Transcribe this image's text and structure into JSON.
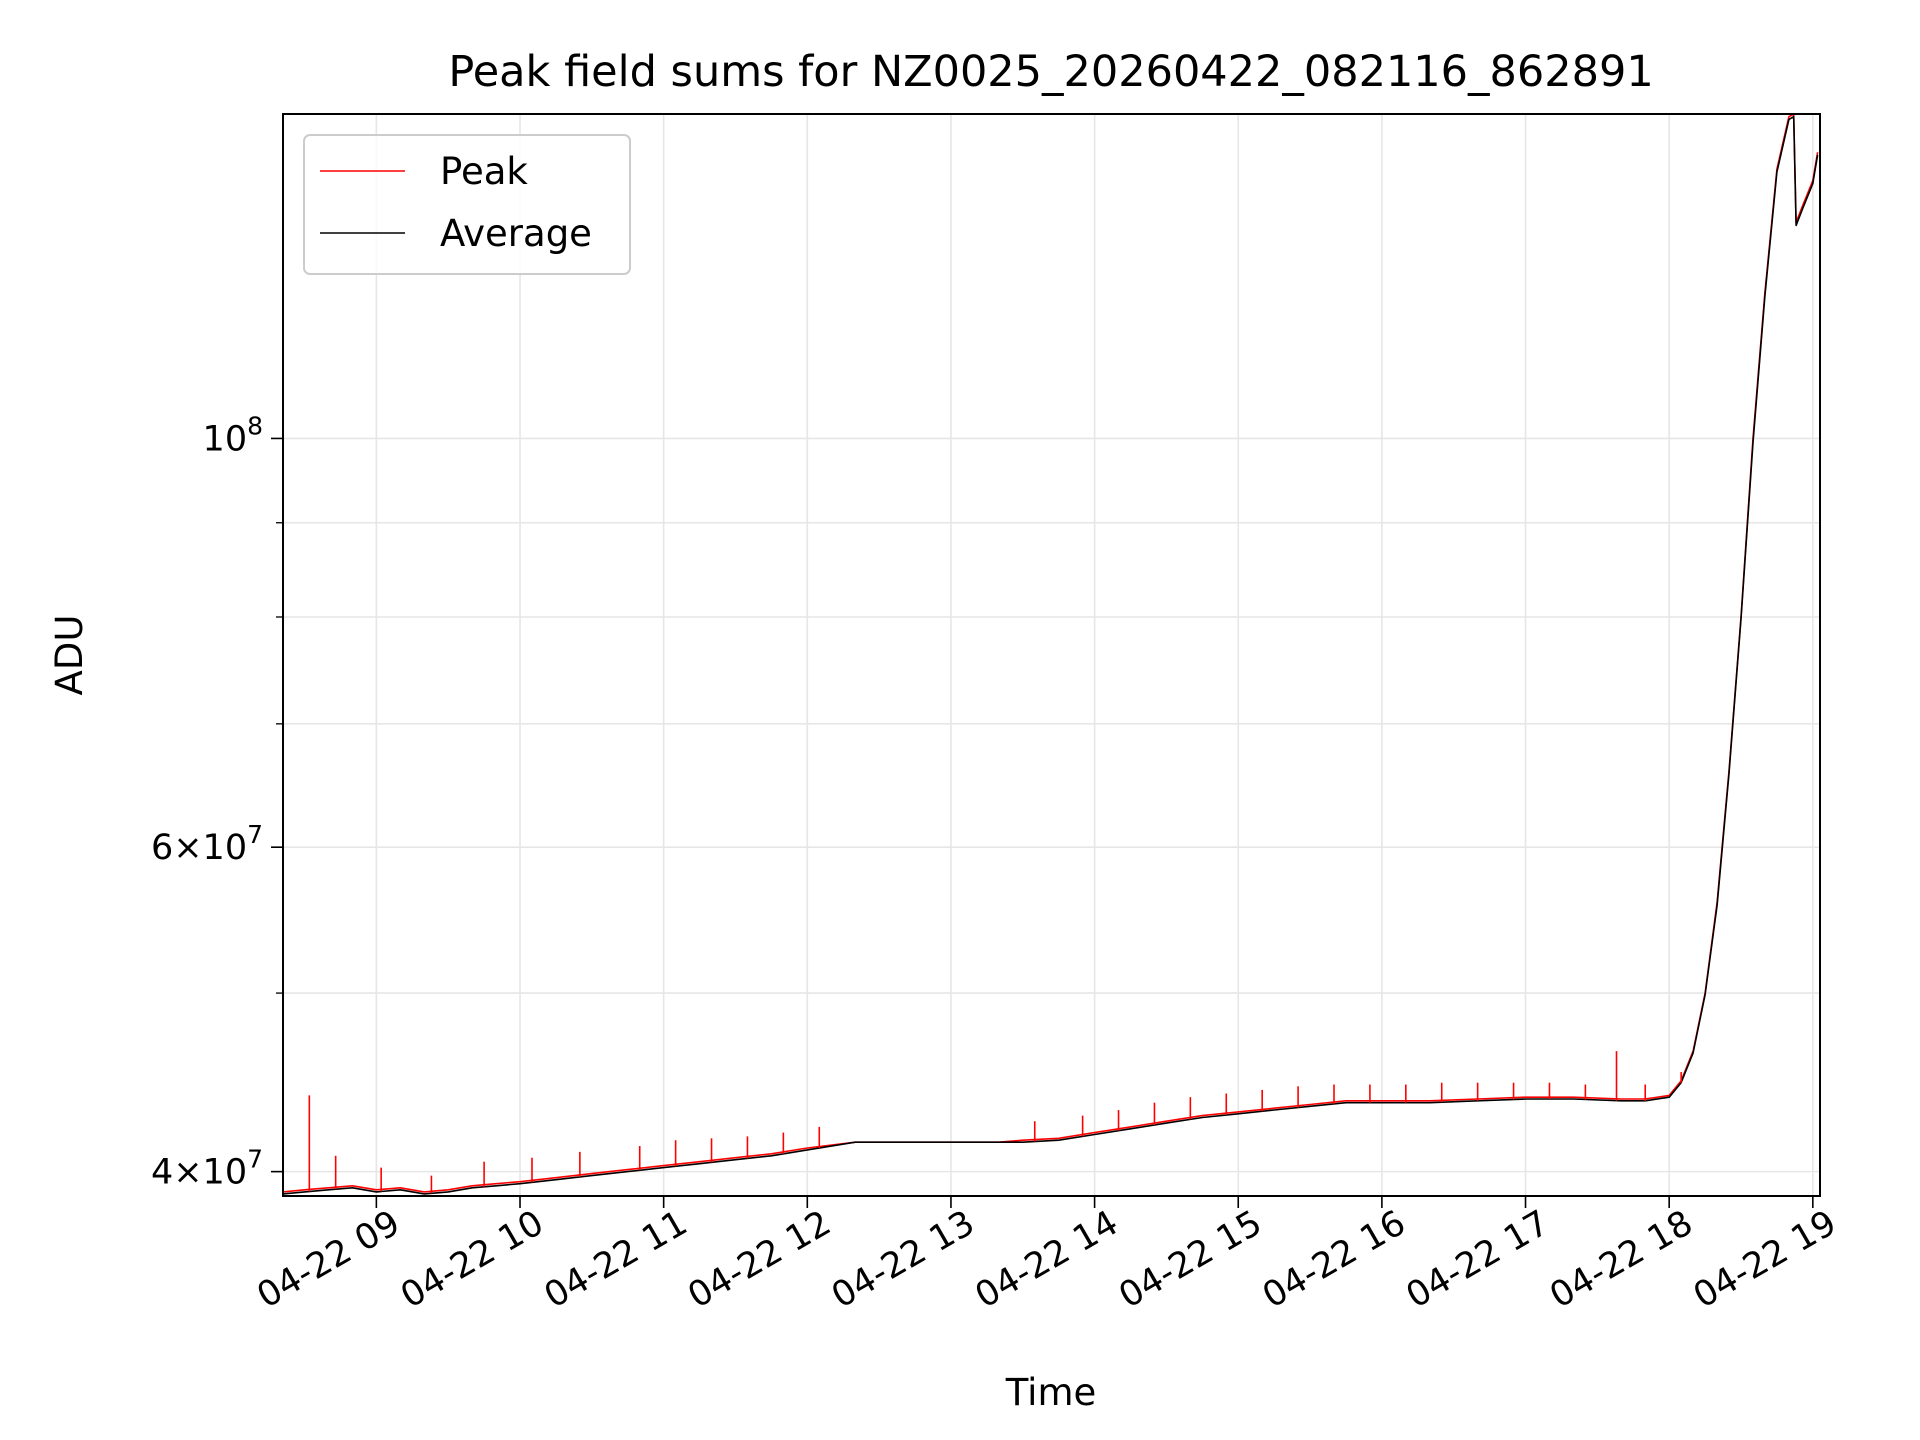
{
  "chart_data": {
    "type": "line",
    "title": "Peak field sums for NZ0025_20260422_082116_862891",
    "xlabel": "Time",
    "ylabel": "ADU",
    "xlim": [
      "2026-04-22 08:21",
      "2026-04-22 19:03"
    ],
    "ylim": [
      38800000,
      150000000
    ],
    "yscale": "log",
    "grid": true,
    "legend": "top-left",
    "x_ticks": [
      "04-22 09",
      "04-22 10",
      "04-22 11",
      "04-22 12",
      "04-22 13",
      "04-22 14",
      "04-22 15",
      "04-22 16",
      "04-22 17",
      "04-22 18",
      "04-22 19"
    ],
    "y_ticks": [
      {
        "value": 40000000,
        "base": "4",
        "exp": "7"
      },
      {
        "value": 60000000,
        "base": "6",
        "exp": "7"
      },
      {
        "value": 100000000,
        "base": "10",
        "exp": "8"
      }
    ],
    "y_minor_ticks": [
      50000000,
      70000000,
      80000000,
      90000000
    ],
    "series": [
      {
        "name": "Peak",
        "color": "#ff0000",
        "x": [
          "2026-04-22 08:21",
          "2026-04-22 08:30",
          "2026-04-22 08:40",
          "2026-04-22 08:50",
          "2026-04-22 09:00",
          "2026-04-22 09:10",
          "2026-04-22 09:20",
          "2026-04-22 09:30",
          "2026-04-22 09:40",
          "2026-04-22 09:50",
          "2026-04-22 10:00",
          "2026-04-22 10:15",
          "2026-04-22 10:30",
          "2026-04-22 10:45",
          "2026-04-22 11:00",
          "2026-04-22 11:15",
          "2026-04-22 11:30",
          "2026-04-22 11:45",
          "2026-04-22 12:00",
          "2026-04-22 12:20",
          "2026-04-22 12:40",
          "2026-04-22 13:00",
          "2026-04-22 13:20",
          "2026-04-22 13:30",
          "2026-04-22 13:45",
          "2026-04-22 14:00",
          "2026-04-22 14:15",
          "2026-04-22 14:30",
          "2026-04-22 14:45",
          "2026-04-22 15:00",
          "2026-04-22 15:15",
          "2026-04-22 15:30",
          "2026-04-22 15:45",
          "2026-04-22 16:00",
          "2026-04-22 16:20",
          "2026-04-22 16:40",
          "2026-04-22 17:00",
          "2026-04-22 17:20",
          "2026-04-22 17:40",
          "2026-04-22 17:50",
          "2026-04-22 18:00",
          "2026-04-22 18:05",
          "2026-04-22 18:10",
          "2026-04-22 18:15",
          "2026-04-22 18:20",
          "2026-04-22 18:25",
          "2026-04-22 18:30",
          "2026-04-22 18:35",
          "2026-04-22 18:40",
          "2026-04-22 18:45",
          "2026-04-22 18:50",
          "2026-04-22 18:52",
          "2026-04-22 18:53",
          "2026-04-22 18:56",
          "2026-04-22 19:00",
          "2026-04-22 19:02"
        ],
        "y": [
          39000000,
          39100000,
          39200000,
          39300000,
          39100000,
          39200000,
          39000000,
          39100000,
          39300000,
          39400000,
          39500000,
          39700000,
          39900000,
          40100000,
          40300000,
          40500000,
          40700000,
          40900000,
          41200000,
          41500000,
          41500000,
          41500000,
          41500000,
          41600000,
          41700000,
          42000000,
          42300000,
          42600000,
          42900000,
          43100000,
          43300000,
          43500000,
          43700000,
          43700000,
          43700000,
          43800000,
          43900000,
          43900000,
          43800000,
          43800000,
          44000000,
          44800000,
          46500000,
          50000000,
          56000000,
          66000000,
          80000000,
          100000000,
          120000000,
          140000000,
          149500000,
          150000000,
          131000000,
          134000000,
          138000000,
          143000000
        ]
      },
      {
        "name": "Average",
        "color": "#000000",
        "x": [
          "2026-04-22 08:21",
          "2026-04-22 08:30",
          "2026-04-22 08:40",
          "2026-04-22 08:50",
          "2026-04-22 09:00",
          "2026-04-22 09:10",
          "2026-04-22 09:20",
          "2026-04-22 09:30",
          "2026-04-22 09:40",
          "2026-04-22 09:50",
          "2026-04-22 10:00",
          "2026-04-22 10:15",
          "2026-04-22 10:30",
          "2026-04-22 10:45",
          "2026-04-22 11:00",
          "2026-04-22 11:15",
          "2026-04-22 11:30",
          "2026-04-22 11:45",
          "2026-04-22 12:00",
          "2026-04-22 12:20",
          "2026-04-22 12:40",
          "2026-04-22 13:00",
          "2026-04-22 13:20",
          "2026-04-22 13:30",
          "2026-04-22 13:45",
          "2026-04-22 14:00",
          "2026-04-22 14:15",
          "2026-04-22 14:30",
          "2026-04-22 14:45",
          "2026-04-22 15:00",
          "2026-04-22 15:15",
          "2026-04-22 15:30",
          "2026-04-22 15:45",
          "2026-04-22 16:00",
          "2026-04-22 16:20",
          "2026-04-22 16:40",
          "2026-04-22 17:00",
          "2026-04-22 17:20",
          "2026-04-22 17:40",
          "2026-04-22 17:50",
          "2026-04-22 18:00",
          "2026-04-22 18:05",
          "2026-04-22 18:10",
          "2026-04-22 18:15",
          "2026-04-22 18:20",
          "2026-04-22 18:25",
          "2026-04-22 18:30",
          "2026-04-22 18:35",
          "2026-04-22 18:40",
          "2026-04-22 18:45",
          "2026-04-22 18:50",
          "2026-04-22 18:52",
          "2026-04-22 18:53",
          "2026-04-22 18:56",
          "2026-04-22 19:00",
          "2026-04-22 19:02"
        ],
        "y": [
          38900000,
          39000000,
          39100000,
          39200000,
          39000000,
          39100000,
          38900000,
          39000000,
          39200000,
          39300000,
          39400000,
          39600000,
          39800000,
          40000000,
          40200000,
          40400000,
          40600000,
          40800000,
          41100000,
          41500000,
          41500000,
          41500000,
          41500000,
          41500000,
          41600000,
          41900000,
          42200000,
          42500000,
          42800000,
          43000000,
          43200000,
          43400000,
          43600000,
          43600000,
          43600000,
          43700000,
          43800000,
          43800000,
          43700000,
          43700000,
          43900000,
          44700000,
          46400000,
          49900000,
          55800000,
          65800000,
          79800000,
          99500000,
          119500000,
          139500000,
          149000000,
          149500000,
          130500000,
          133500000,
          137500000,
          142500000
        ]
      }
    ],
    "peak_spikes": {
      "x": [
        "2026-04-22 08:32",
        "2026-04-22 08:43",
        "2026-04-22 09:02",
        "2026-04-22 09:23",
        "2026-04-22 09:45",
        "2026-04-22 10:05",
        "2026-04-22 10:25",
        "2026-04-22 10:50",
        "2026-04-22 11:05",
        "2026-04-22 11:20",
        "2026-04-22 11:35",
        "2026-04-22 11:50",
        "2026-04-22 12:05",
        "2026-04-22 13:35",
        "2026-04-22 13:55",
        "2026-04-22 14:10",
        "2026-04-22 14:25",
        "2026-04-22 14:40",
        "2026-04-22 14:55",
        "2026-04-22 15:10",
        "2026-04-22 15:25",
        "2026-04-22 15:40",
        "2026-04-22 15:55",
        "2026-04-22 16:10",
        "2026-04-22 16:25",
        "2026-04-22 16:40",
        "2026-04-22 16:55",
        "2026-04-22 17:10",
        "2026-04-22 17:25",
        "2026-04-22 17:38",
        "2026-04-22 17:50",
        "2026-04-22 18:05"
      ],
      "y": [
        44000000,
        40800000,
        40200000,
        39800000,
        40500000,
        40700000,
        41000000,
        41300000,
        41600000,
        41700000,
        41800000,
        42000000,
        42300000,
        42600000,
        42900000,
        43200000,
        43600000,
        43900000,
        44100000,
        44300000,
        44500000,
        44600000,
        44600000,
        44600000,
        44700000,
        44700000,
        44700000,
        44700000,
        44600000,
        46500000,
        44600000,
        45300000
      ]
    }
  }
}
